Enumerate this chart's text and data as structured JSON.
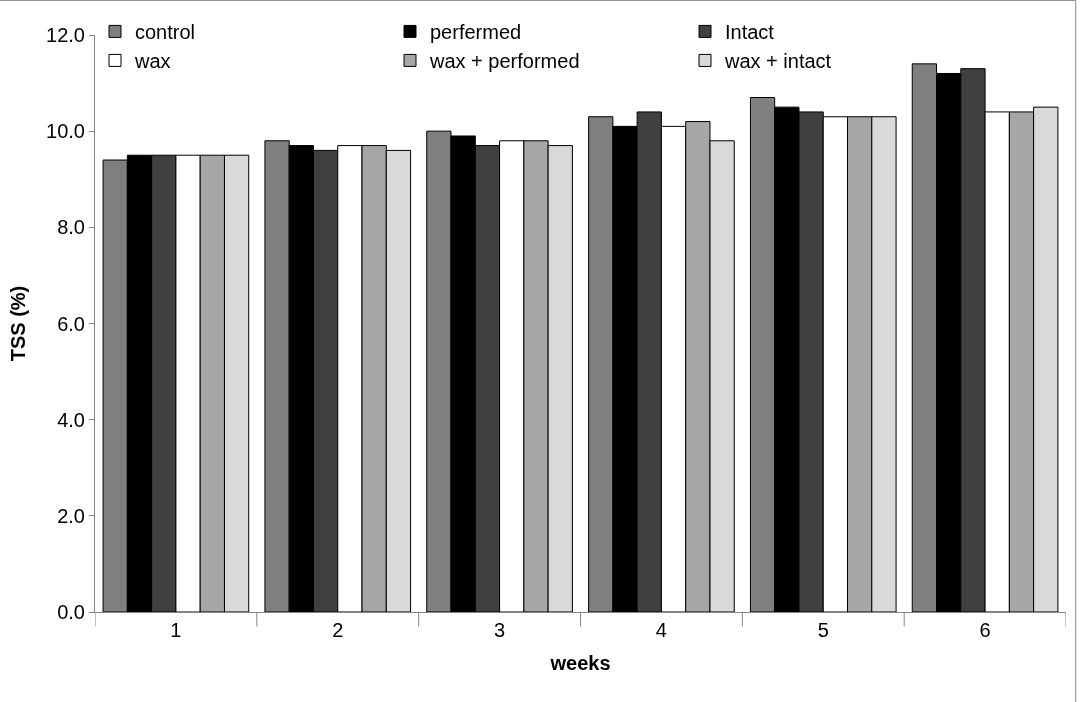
{
  "chart_data": {
    "type": "bar",
    "xlabel": "weeks",
    "ylabel": "TSS (%)",
    "categories": [
      "1",
      "2",
      "3",
      "4",
      "5",
      "6"
    ],
    "series": [
      {
        "name": "control",
        "color": "#7f7f7f",
        "values": [
          9.4,
          9.8,
          10.0,
          10.3,
          10.7,
          11.4
        ]
      },
      {
        "name": "perfermed",
        "color": "#000000",
        "values": [
          9.5,
          9.7,
          9.9,
          10.1,
          10.5,
          11.2
        ]
      },
      {
        "name": "Intact",
        "color": "#404040",
        "values": [
          9.5,
          9.6,
          9.7,
          10.4,
          10.4,
          11.3
        ]
      },
      {
        "name": "wax",
        "color": "#ffffff",
        "values": [
          9.5,
          9.7,
          9.8,
          10.1,
          10.3,
          10.4
        ]
      },
      {
        "name": "wax + performed",
        "color": "#a6a6a6",
        "values": [
          9.5,
          9.7,
          9.8,
          10.2,
          10.3,
          10.4
        ]
      },
      {
        "name": "wax + intact",
        "color": "#d9d9d9",
        "values": [
          9.5,
          9.6,
          9.7,
          9.8,
          10.3,
          10.5
        ]
      }
    ],
    "ylim": [
      0,
      12
    ],
    "yticks": [
      {
        "value": 0,
        "label": "0.0"
      },
      {
        "value": 2,
        "label": "2.0"
      },
      {
        "value": 4,
        "label": "4.0"
      },
      {
        "value": 6,
        "label": "6.0"
      },
      {
        "value": 8,
        "label": "8.0"
      },
      {
        "value": 10,
        "label": "10.0"
      },
      {
        "value": 12,
        "label": "12.0"
      }
    ],
    "grid": false,
    "legend": "top"
  }
}
